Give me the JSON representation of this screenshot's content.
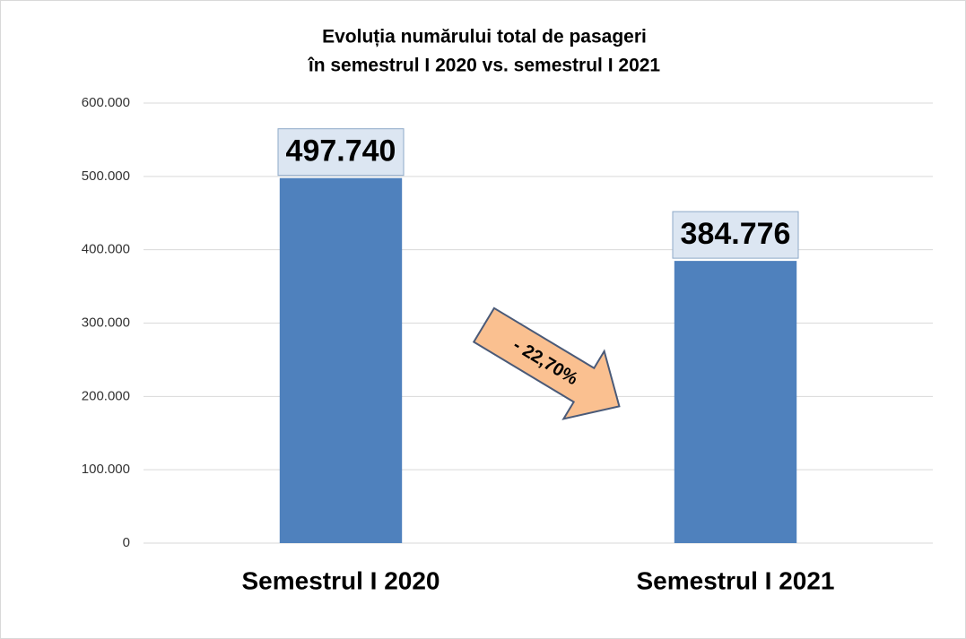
{
  "chart_data": {
    "type": "bar",
    "title": [
      "Evoluția numărului total de pasageri",
      "în semestrul I 2020 vs. semestrul I 2021"
    ],
    "categories": [
      "Semestrul I 2020",
      "Semestrul I 2021"
    ],
    "values": [
      497740,
      384776
    ],
    "value_labels": [
      "497.740",
      "384.776"
    ],
    "color": "#4f81bd",
    "ylim": [
      0,
      600000
    ],
    "yticks": [
      0,
      {
        "value": 100000,
        "label": "100.000"
      },
      {
        "value": 200000,
        "label": "200.000"
      },
      {
        "value": 300000,
        "label": "300.000"
      },
      {
        "value": 400000,
        "label": "400.000"
      },
      {
        "value": 500000,
        "label": "500.000"
      },
      {
        "value": 600000,
        "label": "600.000"
      }
    ],
    "grid": true,
    "annotation": "- 22,70%"
  }
}
